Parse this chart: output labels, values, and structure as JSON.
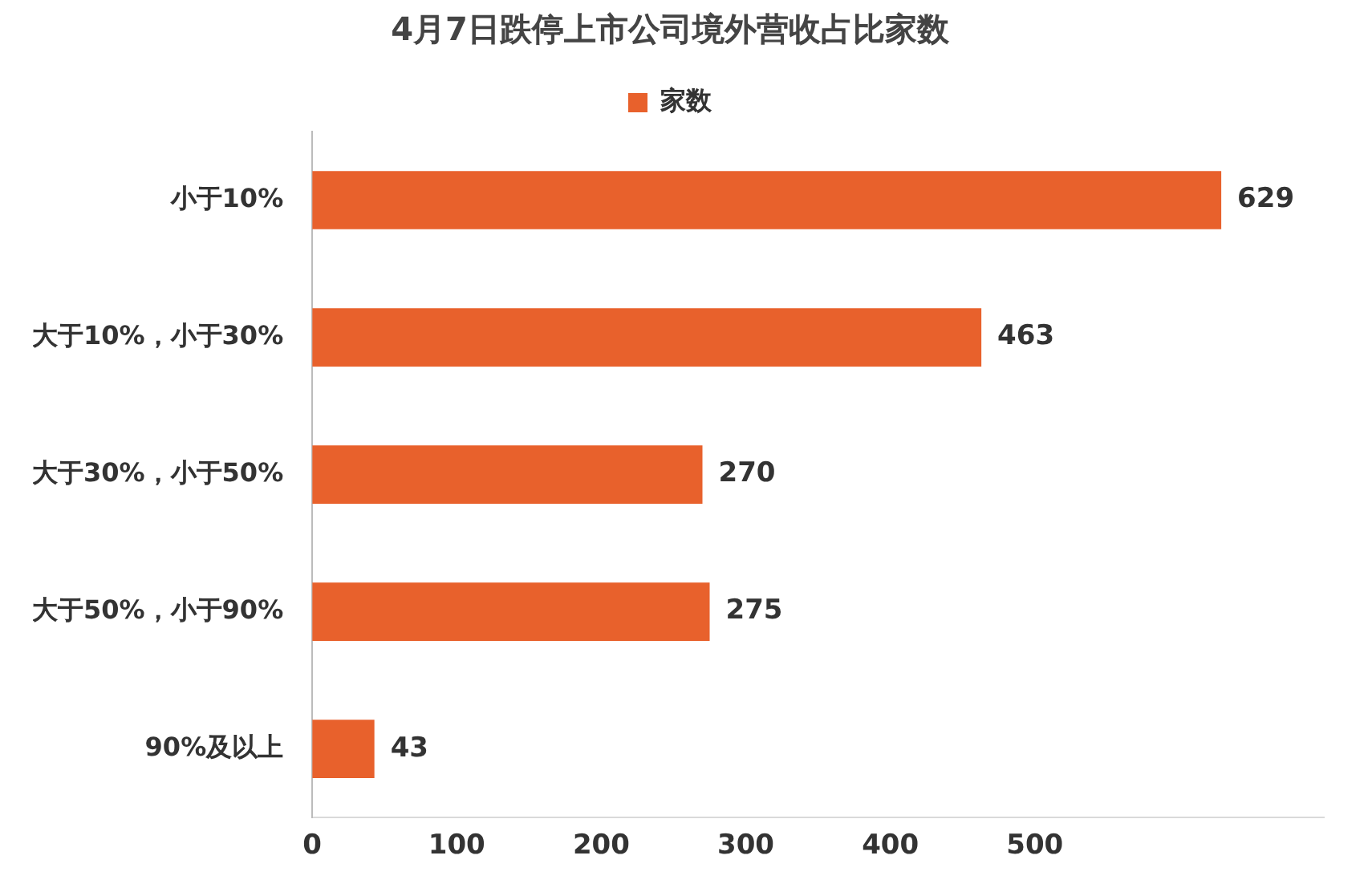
{
  "chart_data": {
    "type": "bar",
    "orientation": "horizontal",
    "title": "4月7日跌停上市公司境外营收占比家数",
    "categories": [
      "小于10%",
      "大于10%，小于30%",
      "大于30%，小于50%",
      "大于50%，小于90%",
      "90%及以上"
    ],
    "series": [
      {
        "name": "家数",
        "color": "#e8612c",
        "values": [
          629,
          463,
          270,
          275,
          43
        ]
      }
    ],
    "xlim": [
      0,
      700
    ],
    "xticks": [
      0,
      100,
      200,
      300,
      400,
      500
    ],
    "grid": false,
    "legend": "top",
    "data_labels": true
  }
}
